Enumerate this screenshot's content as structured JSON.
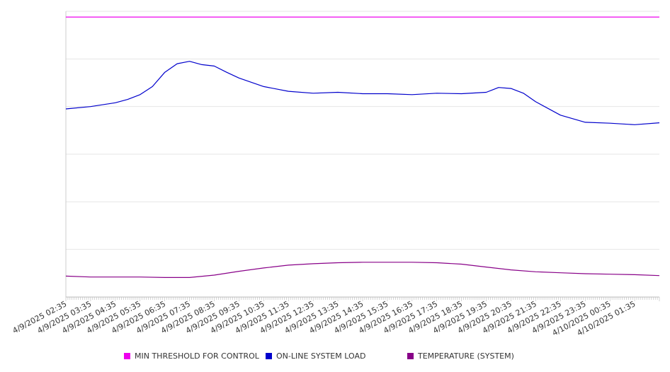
{
  "chart_data": {
    "type": "line",
    "title": "",
    "xlabel": "",
    "ylabel": "",
    "ylim": [
      0,
      6
    ],
    "grid": true,
    "legend_position": "bottom",
    "x_start": "4/9/2025 02:35",
    "x_end": "4/10/2025 02:35",
    "x_tick_labels": [
      "4/9/2025 02:35",
      "4/9/2025 03:35",
      "4/9/2025 04:35",
      "4/9/2025 05:35",
      "4/9/2025 06:35",
      "4/9/2025 07:35",
      "4/9/2025 08:35",
      "4/9/2025 09:35",
      "4/9/2025 10:35",
      "4/9/2025 11:35",
      "4/9/2025 12:35",
      "4/9/2025 13:35",
      "4/9/2025 14:35",
      "4/9/2025 15:35",
      "4/9/2025 16:35",
      "4/9/2025 17:35",
      "4/9/2025 18:35",
      "4/9/2025 19:35",
      "4/9/2025 20:35",
      "4/9/2025 21:35",
      "4/9/2025 22:35",
      "4/9/2025 23:35",
      "4/10/2025 00:35",
      "4/10/2025 01:35"
    ],
    "series": [
      {
        "name": "MIN THRESHOLD FOR CONTROL",
        "color": "#ee00ee",
        "x": [
          "4/9/2025 02:35",
          "4/10/2025 02:35"
        ],
        "y": [
          5.88,
          5.88
        ]
      },
      {
        "name": "ON-LINE SYSTEM LOAD",
        "color": "#0000cc",
        "x": [
          "4/9/2025 02:35",
          "4/9/2025 03:35",
          "4/9/2025 04:35",
          "4/9/2025 05:05",
          "4/9/2025 05:35",
          "4/9/2025 06:05",
          "4/9/2025 06:35",
          "4/9/2025 07:05",
          "4/9/2025 07:35",
          "4/9/2025 08:05",
          "4/9/2025 08:35",
          "4/9/2025 09:05",
          "4/9/2025 09:35",
          "4/9/2025 10:35",
          "4/9/2025 11:35",
          "4/9/2025 12:35",
          "4/9/2025 13:35",
          "4/9/2025 14:35",
          "4/9/2025 15:35",
          "4/9/2025 16:35",
          "4/9/2025 17:35",
          "4/9/2025 18:35",
          "4/9/2025 19:35",
          "4/9/2025 20:05",
          "4/9/2025 20:35",
          "4/9/2025 21:05",
          "4/9/2025 21:35",
          "4/9/2025 22:35",
          "4/9/2025 23:35",
          "4/10/2025 00:35",
          "4/10/2025 01:35",
          "4/10/2025 02:35"
        ],
        "y": [
          3.95,
          4.0,
          4.08,
          4.15,
          4.25,
          4.42,
          4.72,
          4.9,
          4.95,
          4.88,
          4.85,
          4.72,
          4.6,
          4.42,
          4.32,
          4.28,
          4.3,
          4.27,
          4.27,
          4.25,
          4.28,
          4.27,
          4.3,
          4.4,
          4.38,
          4.28,
          4.1,
          3.82,
          3.67,
          3.65,
          3.62,
          3.66
        ]
      },
      {
        "name": "TEMPERATURE (SYSTEM)",
        "color": "#880088",
        "x": [
          "4/9/2025 02:35",
          "4/9/2025 03:35",
          "4/9/2025 04:35",
          "4/9/2025 05:35",
          "4/9/2025 06:35",
          "4/9/2025 07:35",
          "4/9/2025 08:35",
          "4/9/2025 09:35",
          "4/9/2025 10:35",
          "4/9/2025 11:35",
          "4/9/2025 12:35",
          "4/9/2025 13:35",
          "4/9/2025 14:35",
          "4/9/2025 15:35",
          "4/9/2025 16:35",
          "4/9/2025 17:35",
          "4/9/2025 18:35",
          "4/9/2025 19:35",
          "4/9/2025 20:35",
          "4/9/2025 21:35",
          "4/9/2025 22:35",
          "4/9/2025 23:35",
          "4/10/2025 00:35",
          "4/10/2025 01:35",
          "4/10/2025 02:35"
        ],
        "y": [
          0.44,
          0.42,
          0.42,
          0.42,
          0.41,
          0.41,
          0.46,
          0.54,
          0.61,
          0.67,
          0.7,
          0.72,
          0.73,
          0.73,
          0.73,
          0.72,
          0.69,
          0.63,
          0.57,
          0.53,
          0.51,
          0.49,
          0.48,
          0.47,
          0.45
        ]
      }
    ]
  },
  "legend": {
    "items": [
      {
        "label": "MIN THRESHOLD FOR CONTROL",
        "color": "#ee00ee"
      },
      {
        "label": "ON-LINE SYSTEM LOAD",
        "color": "#0000cc"
      },
      {
        "label": "TEMPERATURE (SYSTEM)",
        "color": "#880088"
      }
    ]
  }
}
